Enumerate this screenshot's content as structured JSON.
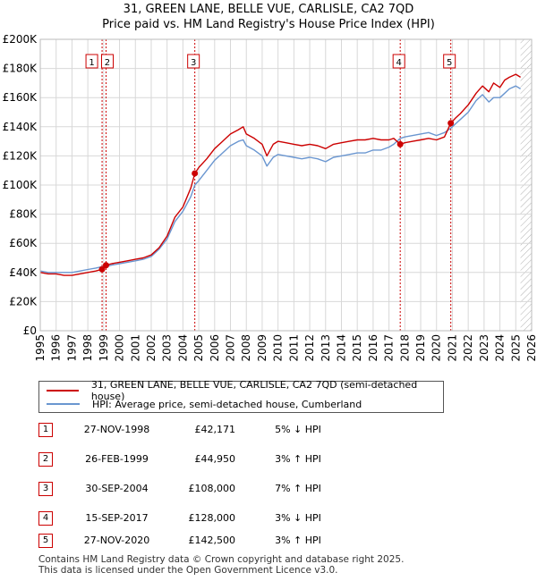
{
  "title_line1": "31, GREEN LANE, BELLE VUE, CARLISLE, CA2 7QD",
  "title_line2": "Price paid vs. HM Land Registry's House Price Index (HPI)",
  "colors": {
    "price_line": "#cc0000",
    "hpi_line": "#6a96d0",
    "grid": "#d8d8d8",
    "marker_line": "#cc0000",
    "band": "#dce6f5",
    "hatch": "#aaaaaa"
  },
  "chart_data": {
    "type": "line",
    "title": "Price paid vs. HM Land Registry's House Price Index (HPI)",
    "xlabel": "",
    "ylabel": "",
    "xlim": [
      1995,
      2026
    ],
    "ylim": [
      0,
      200000
    ],
    "y_ticks": [
      {
        "value": 0,
        "label": "£0"
      },
      {
        "value": 20000,
        "label": "£20K"
      },
      {
        "value": 40000,
        "label": "£40K"
      },
      {
        "value": 60000,
        "label": "£60K"
      },
      {
        "value": 80000,
        "label": "£80K"
      },
      {
        "value": 100000,
        "label": "£100K"
      },
      {
        "value": 120000,
        "label": "£120K"
      },
      {
        "value": 140000,
        "label": "£140K"
      },
      {
        "value": 160000,
        "label": "£160K"
      },
      {
        "value": 180000,
        "label": "£180K"
      },
      {
        "value": 200000,
        "label": "£200K"
      }
    ],
    "x_ticks": [
      "1995",
      "1996",
      "1997",
      "1998",
      "1999",
      "2000",
      "2001",
      "2002",
      "2003",
      "2004",
      "2005",
      "2006",
      "2007",
      "2008",
      "2009",
      "2010",
      "2011",
      "2012",
      "2013",
      "2014",
      "2015",
      "2016",
      "2017",
      "2018",
      "2019",
      "2020",
      "2021",
      "2022",
      "2023",
      "2024",
      "2025",
      "2026"
    ],
    "grid": true,
    "hatched_after": 2025.3,
    "series": [
      {
        "name": "31, GREEN LANE, BELLE VUE, CARLISLE, CA2 7QD (semi-detached house)",
        "x": [
          1995.0,
          1995.5,
          1996.0,
          1996.5,
          1997.0,
          1997.5,
          1998.0,
          1998.5,
          1998.9,
          1999.15,
          1999.5,
          2000.0,
          2000.5,
          2001.0,
          2001.5,
          2002.0,
          2002.5,
          2003.0,
          2003.5,
          2004.0,
          2004.5,
          2004.75,
          2005.0,
          2005.5,
          2006.0,
          2006.5,
          2007.0,
          2007.5,
          2007.8,
          2008.0,
          2008.5,
          2009.0,
          2009.3,
          2009.7,
          2010.0,
          2010.5,
          2011.0,
          2011.5,
          2012.0,
          2012.5,
          2013.0,
          2013.5,
          2014.0,
          2014.5,
          2015.0,
          2015.5,
          2016.0,
          2016.5,
          2017.0,
          2017.3,
          2017.71,
          2018.0,
          2018.5,
          2019.0,
          2019.5,
          2020.0,
          2020.5,
          2020.9,
          2021.2,
          2021.5,
          2022.0,
          2022.5,
          2022.9,
          2023.3,
          2023.6,
          2024.0,
          2024.3,
          2024.6,
          2025.0,
          2025.3
        ],
        "y": [
          40000,
          39000,
          39000,
          38000,
          38000,
          39000,
          40000,
          41000,
          42171,
          44950,
          46000,
          47000,
          48000,
          49000,
          50000,
          52000,
          57000,
          65000,
          78000,
          85000,
          98000,
          108000,
          112000,
          118000,
          125000,
          130000,
          135000,
          138000,
          140000,
          135000,
          132000,
          128000,
          120000,
          128000,
          130000,
          129000,
          128000,
          127000,
          128000,
          127000,
          125000,
          128000,
          129000,
          130000,
          131000,
          131000,
          132000,
          131000,
          131000,
          132000,
          128000,
          129000,
          130000,
          131000,
          132000,
          131000,
          133000,
          142500,
          146000,
          149000,
          155000,
          163000,
          168000,
          164000,
          170000,
          167000,
          172000,
          174000,
          176000,
          174000
        ]
      },
      {
        "name": "HPI: Average price, semi-detached house, Cumberland",
        "x": [
          1995.0,
          1995.5,
          1996.0,
          1996.5,
          1997.0,
          1997.5,
          1998.0,
          1998.5,
          1998.9,
          1999.15,
          1999.5,
          2000.0,
          2000.5,
          2001.0,
          2001.5,
          2002.0,
          2002.5,
          2003.0,
          2003.5,
          2004.0,
          2004.5,
          2004.75,
          2005.0,
          2005.5,
          2006.0,
          2006.5,
          2007.0,
          2007.5,
          2007.8,
          2008.0,
          2008.5,
          2009.0,
          2009.3,
          2009.7,
          2010.0,
          2010.5,
          2011.0,
          2011.5,
          2012.0,
          2012.5,
          2013.0,
          2013.5,
          2014.0,
          2014.5,
          2015.0,
          2015.5,
          2016.0,
          2016.5,
          2017.0,
          2017.3,
          2017.71,
          2018.0,
          2018.5,
          2019.0,
          2019.5,
          2020.0,
          2020.5,
          2020.9,
          2021.2,
          2021.5,
          2022.0,
          2022.5,
          2022.9,
          2023.3,
          2023.6,
          2024.0,
          2024.3,
          2024.6,
          2025.0,
          2025.3
        ],
        "y": [
          41000,
          40000,
          40000,
          40000,
          40000,
          41000,
          42000,
          43000,
          44000,
          44000,
          45000,
          46000,
          47000,
          48000,
          49000,
          51000,
          56000,
          63000,
          75000,
          82000,
          92000,
          100000,
          103000,
          110000,
          117000,
          122000,
          127000,
          130000,
          131000,
          127000,
          124000,
          120000,
          113000,
          119000,
          121000,
          120000,
          119000,
          118000,
          119000,
          118000,
          116000,
          119000,
          120000,
          121000,
          122000,
          122000,
          124000,
          124000,
          126000,
          128000,
          132000,
          133000,
          134000,
          135000,
          136000,
          134000,
          136000,
          139000,
          142000,
          145000,
          150000,
          158000,
          162000,
          157000,
          160000,
          160000,
          163000,
          166000,
          168000,
          166000
        ]
      }
    ],
    "sale_markers": [
      {
        "label": "1",
        "x": 1998.9,
        "y": 42171
      },
      {
        "label": "2",
        "x": 1999.15,
        "y": 44950
      },
      {
        "label": "3",
        "x": 2004.75,
        "y": 108000
      },
      {
        "label": "4",
        "x": 2017.71,
        "y": 128000
      },
      {
        "label": "5",
        "x": 2020.9,
        "y": 142500
      }
    ]
  },
  "legend": {
    "property_label": "31, GREEN LANE, BELLE VUE, CARLISLE, CA2 7QD (semi-detached house)",
    "hpi_label": "HPI: Average price, semi-detached house, Cumberland"
  },
  "transactions": [
    {
      "num": "1",
      "date": "27-NOV-1998",
      "price": "£42,171",
      "hpi": "5% ↓ HPI"
    },
    {
      "num": "2",
      "date": "26-FEB-1999",
      "price": "£44,950",
      "hpi": "3% ↑ HPI"
    },
    {
      "num": "3",
      "date": "30-SEP-2004",
      "price": "£108,000",
      "hpi": "7% ↑ HPI"
    },
    {
      "num": "4",
      "date": "15-SEP-2017",
      "price": "£128,000",
      "hpi": "3% ↓ HPI"
    },
    {
      "num": "5",
      "date": "27-NOV-2020",
      "price": "£142,500",
      "hpi": "3% ↑ HPI"
    }
  ],
  "footer_line1": "Contains HM Land Registry data © Crown copyright and database right 2025.",
  "footer_line2": "This data is licensed under the Open Government Licence v3.0."
}
